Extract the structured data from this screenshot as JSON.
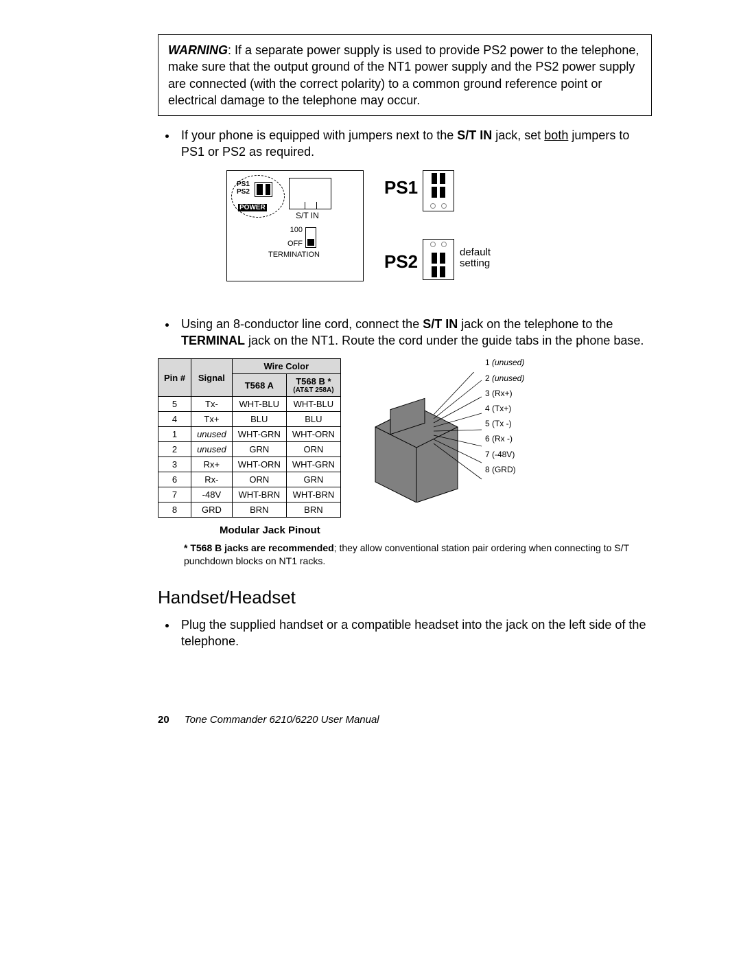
{
  "warning": {
    "label": "WARNING",
    "text": ": If a separate power supply is used to provide PS2 power to the telephone, make sure that the output ground of the NT1 power supply and the PS2 power supply are connected (with the correct polarity) to a common ground reference point or electrical damage to the telephone may occur."
  },
  "bullet1_pre": "If your phone is equipped with jumpers next to the ",
  "bullet1_bold": "S/T IN",
  "bullet1_mid": " jack, set ",
  "bullet1_underline": "both",
  "bullet1_post": " jumpers to PS1 or PS2 as required.",
  "jumper": {
    "ps1": "PS1",
    "ps2": "PS2",
    "power": "POWER",
    "stin": "S/T IN",
    "n100": "100",
    "off": "OFF",
    "termination": "TERMINATION",
    "big_ps1": "PS1",
    "big_ps2": "PS2",
    "default1": "default",
    "default2": "setting"
  },
  "bullet2_pre": "Using an 8-conductor line cord, connect the ",
  "bullet2_b1": "S/T IN",
  "bullet2_mid1": " jack on the telephone to the ",
  "bullet2_b2": "TERMINAL",
  "bullet2_post": " jack on the NT1. Route the cord under the guide tabs in the phone base.",
  "table": {
    "h_pin": "Pin #",
    "h_signal": "Signal",
    "h_wirecolor": "Wire Color",
    "h_t568a": "T568 A",
    "h_t568b": "T568 B *",
    "h_att": "(AT&T 258A)",
    "rows": [
      {
        "pin": "5",
        "signal": "Tx-",
        "a": "WHT-BLU",
        "b": "WHT-BLU",
        "italic": false
      },
      {
        "pin": "4",
        "signal": "Tx+",
        "a": "BLU",
        "b": "BLU",
        "italic": false
      },
      {
        "pin": "1",
        "signal": "unused",
        "a": "WHT-GRN",
        "b": "WHT-ORN",
        "italic": true
      },
      {
        "pin": "2",
        "signal": "unused",
        "a": "GRN",
        "b": "ORN",
        "italic": true
      },
      {
        "pin": "3",
        "signal": "Rx+",
        "a": "WHT-ORN",
        "b": "WHT-GRN",
        "italic": false
      },
      {
        "pin": "6",
        "signal": "Rx-",
        "a": "ORN",
        "b": "GRN",
        "italic": false
      },
      {
        "pin": "7",
        "signal": "-48V",
        "a": "WHT-BRN",
        "b": "WHT-BRN",
        "italic": false
      },
      {
        "pin": "8",
        "signal": "GRD",
        "a": "BRN",
        "b": "BRN",
        "italic": false
      }
    ]
  },
  "jack_pins": [
    {
      "n": "1",
      "label": "(unused)",
      "italic": true
    },
    {
      "n": "2",
      "label": "(unused)",
      "italic": true
    },
    {
      "n": "3",
      "label": "(Rx+)",
      "italic": false
    },
    {
      "n": "4",
      "label": "(Tx+)",
      "italic": false
    },
    {
      "n": "5",
      "label": "(Tx -)",
      "italic": false
    },
    {
      "n": "6",
      "label": "(Rx -)",
      "italic": false
    },
    {
      "n": "7",
      "label": "(-48V)",
      "italic": false
    },
    {
      "n": "8",
      "label": "(GRD)",
      "italic": false
    }
  ],
  "pinout_caption": "Modular Jack Pinout",
  "footnote_bold": "* T568 B jacks are recommended",
  "footnote_rest": "; they allow conventional station pair ordering when connecting to S/T punchdown blocks on NT1 racks.",
  "heading2": "Handset/Headset",
  "bullet3": "Plug the supplied handset or a compatible headset into the jack on the left side of the telephone.",
  "footer_page": "20",
  "footer_title": "Tone Commander 6210/6220 User Manual",
  "colors": {
    "jack_fill": "#808080",
    "jack_stroke": "#000000",
    "header_bg": "#d9d9d9"
  }
}
